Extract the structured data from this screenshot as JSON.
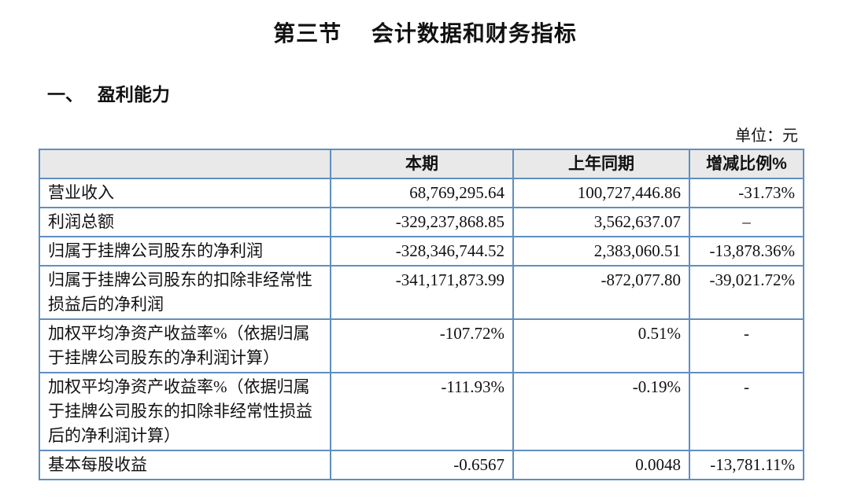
{
  "page": {
    "title": "第三节　 会计数据和财务指标",
    "section_heading": "一、　 盈利能力",
    "unit_label": "单位：元"
  },
  "table": {
    "colors": {
      "border": "#5f8fc0",
      "header_bg": "#e9e9e9"
    },
    "headers": {
      "blank": "",
      "current": "本期",
      "prior": "上年同期",
      "change": "增减比例%"
    },
    "rows": [
      {
        "label": "营业收入",
        "current": "68,769,295.64",
        "prior": "100,727,446.86",
        "change": "-31.73%"
      },
      {
        "label": "利润总额",
        "current": "-329,237,868.85",
        "prior": "3,562,637.07",
        "change": "–"
      },
      {
        "label": "归属于挂牌公司股东的净利润",
        "current": "-328,346,744.52",
        "prior": "2,383,060.51",
        "change": "-13,878.36%"
      },
      {
        "label": "归属于挂牌公司股东的扣除非经常性损益后的净利润",
        "current": "-341,171,873.99",
        "prior": "-872,077.80",
        "change": "-39,021.72%"
      },
      {
        "label": "加权平均净资产收益率%（依据归属于挂牌公司股东的净利润计算）",
        "current": "-107.72%",
        "prior": "0.51%",
        "change": "-"
      },
      {
        "label": "加权平均净资产收益率%（依据归属于挂牌公司股东的扣除非经常性损益后的净利润计算）",
        "current": "-111.93%",
        "prior": "-0.19%",
        "change": "-"
      },
      {
        "label": "基本每股收益",
        "current": "-0.6567",
        "prior": "0.0048",
        "change": "-13,781.11%"
      }
    ]
  }
}
